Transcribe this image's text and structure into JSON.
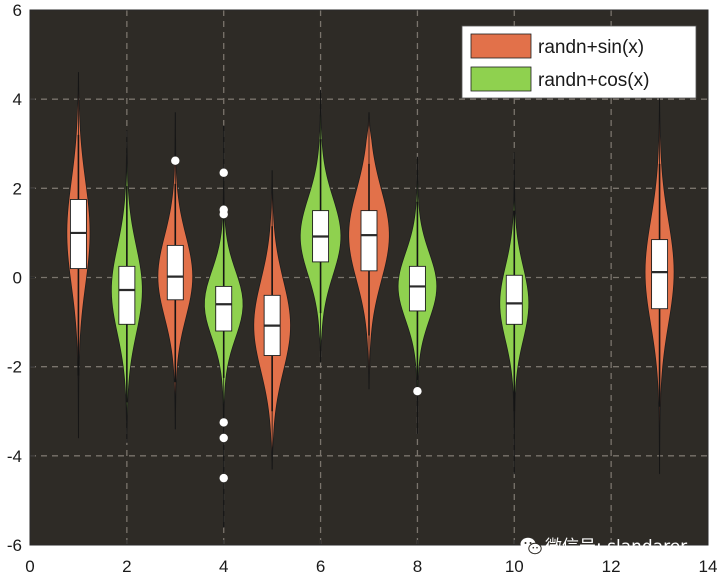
{
  "chart_data": {
    "type": "violin",
    "xlim": [
      0,
      14
    ],
    "ylim": [
      -6,
      6
    ],
    "xticks": [
      0,
      2,
      4,
      6,
      8,
      10,
      12,
      14
    ],
    "yticks": [
      -6,
      -4,
      -2,
      0,
      2,
      4,
      6
    ],
    "grid": true,
    "grid_style": "dashed",
    "legend_placement": "top-right",
    "colors": {
      "plot_background": "#2e2b26",
      "grid": "#7a746c",
      "sin_series": "#e2714a",
      "cos_series": "#8fd14f",
      "box_fill": "#ffffff",
      "outlier": "#ffffff"
    },
    "series": [
      {
        "name": "randn+sin(x)",
        "color": "#e2714a"
      },
      {
        "name": "randn+cos(x)",
        "color": "#8fd14f"
      }
    ],
    "violins": [
      {
        "x": 1,
        "series": 0,
        "min": -3.6,
        "max": 4.6,
        "whisker_low": -2.2,
        "whisker_high": 3.2,
        "q1": 0.2,
        "median": 1.0,
        "q3": 1.75,
        "max_width": 0.24,
        "outliers": []
      },
      {
        "x": 2,
        "series": 1,
        "min": -3.7,
        "max": 3.3,
        "whisker_low": -2.8,
        "whisker_high": 2.05,
        "q1": -1.05,
        "median": -0.28,
        "q3": 0.25,
        "max_width": 0.32,
        "outliers": []
      },
      {
        "x": 3,
        "series": 0,
        "min": -3.4,
        "max": 3.7,
        "whisker_low": -2.35,
        "whisker_high": 2.1,
        "q1": -0.5,
        "median": 0.02,
        "q3": 0.72,
        "max_width": 0.36,
        "outliers": [
          2.62
        ]
      },
      {
        "x": 4,
        "series": 1,
        "min": -5.6,
        "max": 3.4,
        "whisker_low": -2.25,
        "whisker_high": 1.4,
        "q1": -1.2,
        "median": -0.6,
        "q3": -0.2,
        "max_width": 0.4,
        "outliers": [
          2.35,
          1.52,
          1.42,
          -3.25,
          -3.6,
          -4.5
        ]
      },
      {
        "x": 5,
        "series": 0,
        "min": -4.3,
        "max": 2.4,
        "whisker_low": -3.0,
        "whisker_high": 1.15,
        "q1": -1.75,
        "median": -1.08,
        "q3": -0.4,
        "max_width": 0.38,
        "outliers": []
      },
      {
        "x": 6,
        "series": 1,
        "min": -1.9,
        "max": 4.2,
        "whisker_low": -0.8,
        "whisker_high": 3.1,
        "q1": 0.35,
        "median": 0.92,
        "q3": 1.5,
        "max_width": 0.42,
        "outliers": []
      },
      {
        "x": 7,
        "series": 0,
        "min": -2.5,
        "max": 3.7,
        "whisker_low": -1.3,
        "whisker_high": 2.55,
        "q1": 0.15,
        "median": 0.95,
        "q3": 1.5,
        "max_width": 0.42,
        "outliers": []
      },
      {
        "x": 8,
        "series": 1,
        "min": -3.5,
        "max": 2.7,
        "whisker_low": -2.3,
        "whisker_high": 1.7,
        "q1": -0.75,
        "median": -0.2,
        "q3": 0.25,
        "max_width": 0.4,
        "outliers": [
          -2.55
        ]
      },
      {
        "x": 10,
        "series": 1,
        "min": -4.4,
        "max": 2.8,
        "whisker_low": -3.0,
        "whisker_high": 1.5,
        "q1": -1.05,
        "median": -0.58,
        "q3": 0.05,
        "max_width": 0.3,
        "outliers": []
      },
      {
        "x": 13,
        "series": 0,
        "min": -4.4,
        "max": 4.1,
        "whisker_low": -2.9,
        "whisker_high": 2.55,
        "q1": -0.7,
        "median": 0.12,
        "q3": 0.85,
        "max_width": 0.3,
        "outliers": []
      }
    ]
  },
  "watermark": "微信号: slandarer"
}
